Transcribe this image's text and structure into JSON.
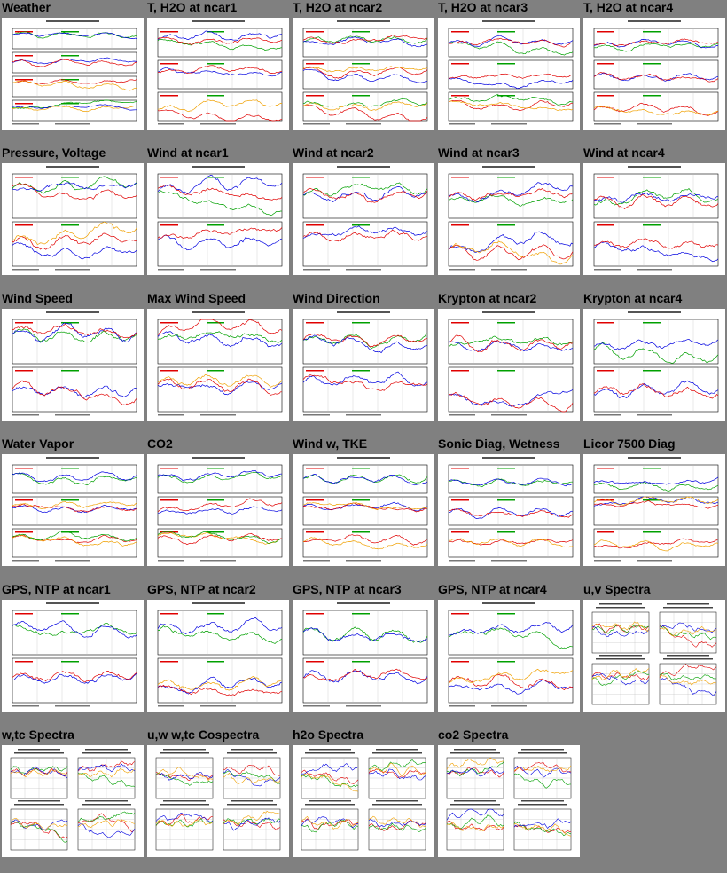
{
  "page": {
    "background": "#808080"
  },
  "colors": {
    "red": "#e00000",
    "green": "#00a000",
    "blue": "#0000e0",
    "orange": "#f0a000",
    "black": "#000000",
    "grey": "#bbbbbb"
  },
  "rows": [
    [
      {
        "title": "Weather",
        "kind": "time4"
      },
      {
        "title": "T, H2O at ncar1",
        "kind": "time3"
      },
      {
        "title": "T, H2O at ncar2",
        "kind": "time3"
      },
      {
        "title": "T, H2O at ncar3",
        "kind": "time3"
      },
      {
        "title": "T, H2O at ncar4",
        "kind": "time3"
      }
    ],
    [
      {
        "title": "Pressure, Voltage",
        "kind": "time2"
      },
      {
        "title": "Wind at ncar1",
        "kind": "time2"
      },
      {
        "title": "Wind at ncar2",
        "kind": "time2"
      },
      {
        "title": "Wind at ncar3",
        "kind": "time2"
      },
      {
        "title": "Wind at ncar4",
        "kind": "time2"
      }
    ],
    [
      {
        "title": "Wind Speed",
        "kind": "time2"
      },
      {
        "title": "Max Wind Speed",
        "kind": "time2"
      },
      {
        "title": "Wind Direction",
        "kind": "time2"
      },
      {
        "title": "Krypton at ncar2",
        "kind": "time2"
      },
      {
        "title": "Krypton at ncar4",
        "kind": "time2"
      }
    ],
    [
      {
        "title": "Water Vapor",
        "kind": "time3"
      },
      {
        "title": "CO2",
        "kind": "time3"
      },
      {
        "title": "Wind w, TKE",
        "kind": "time3"
      },
      {
        "title": "Sonic Diag, Wetness",
        "kind": "time3"
      },
      {
        "title": "Licor 7500 Diag",
        "kind": "time3"
      }
    ],
    [
      {
        "title": "GPS, NTP at ncar1",
        "kind": "time2"
      },
      {
        "title": "GPS, NTP at ncar2",
        "kind": "time2"
      },
      {
        "title": "GPS, NTP at ncar3",
        "kind": "time2"
      },
      {
        "title": "GPS, NTP at ncar4",
        "kind": "time2"
      },
      {
        "title": "u,v Spectra",
        "kind": "spectra"
      }
    ],
    [
      {
        "title": "w,tc Spectra",
        "kind": "spectra"
      },
      {
        "title": "u,w w,tc Cospectra",
        "kind": "spectra"
      },
      {
        "title": "h2o Spectra",
        "kind": "spectra"
      },
      {
        "title": "co2 Spectra",
        "kind": "spectra"
      }
    ]
  ]
}
